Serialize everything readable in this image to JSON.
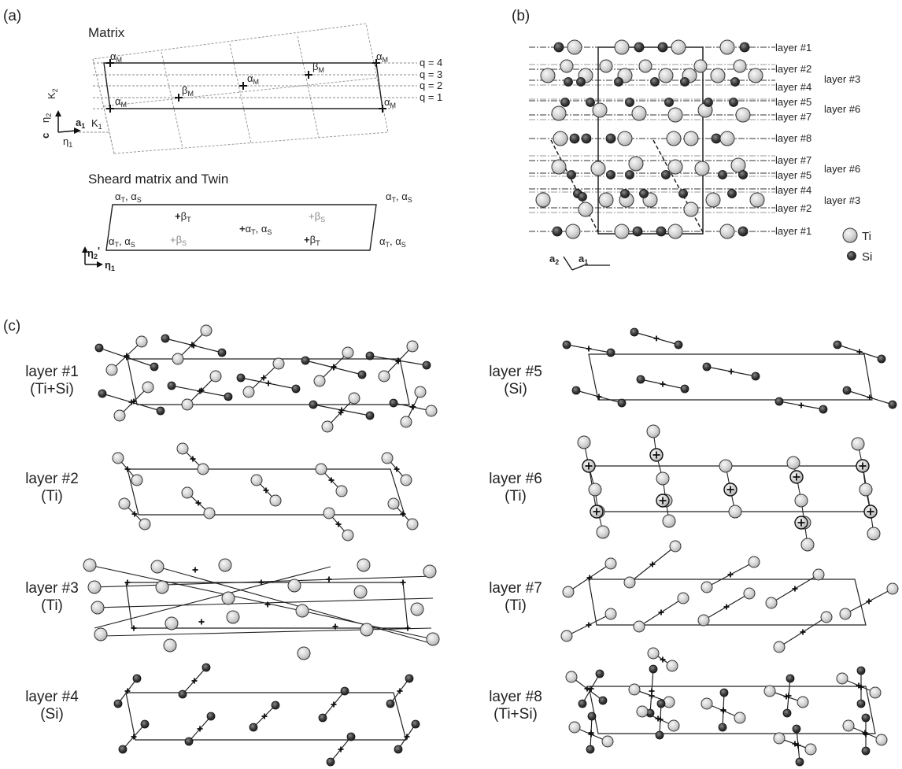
{
  "panels": {
    "a": {
      "label": "(a)",
      "matrix": {
        "title": "Matrix",
        "alpha": "α",
        "beta": "β",
        "sub_m": "M",
        "q_labels": [
          "q = 4",
          "q = 3",
          "q = 2",
          "q = 1"
        ],
        "axes": {
          "k2": "K",
          "k2_sub": "2",
          "eta2": "η",
          "eta2_sub": "2",
          "c": "c",
          "a1": "a",
          "a1_sub": "1",
          "k1": "K",
          "k1_sub": "1",
          "eta1": "η",
          "eta1_sub": "1"
        }
      },
      "twin": {
        "title": "Sheard matrix and Twin",
        "alpha": "α",
        "beta": "β",
        "sub_t": "T",
        "sub_s": "S",
        "comma": ", ",
        "plus": "+",
        "axes": {
          "eta2p": "η",
          "eta2p_sub": "2",
          "prime": "'",
          "eta1": "η",
          "eta1_sub": "1"
        }
      }
    },
    "b": {
      "label": "(b)",
      "layer_labels": [
        "layer #1",
        "layer #2",
        "layer #4",
        "layer #5",
        "layer #7",
        "layer #8",
        "layer #7",
        "layer #5",
        "layer #4",
        "layer #2",
        "layer #1"
      ],
      "group_labels": [
        "layer #3",
        "layer #6",
        "layer #6",
        "layer #3"
      ],
      "legend": {
        "ti": "Ti",
        "si": "Si",
        "ti_color": "#d4d4d4",
        "si_color": "#3c3c3c"
      },
      "axes": {
        "a2": "a",
        "a2_sub": "2",
        "a1": "a",
        "a1_sub": "1"
      }
    },
    "c": {
      "label": "(c)",
      "layers": [
        {
          "name": "layer #1",
          "comp": "(Ti+Si)"
        },
        {
          "name": "layer #2",
          "comp": "(Ti)"
        },
        {
          "name": "layer #3",
          "comp": "(Ti)"
        },
        {
          "name": "layer #4",
          "comp": "(Si)"
        },
        {
          "name": "layer #5",
          "comp": "(Si)"
        },
        {
          "name": "layer #6",
          "comp": "(Ti)"
        },
        {
          "name": "layer #7",
          "comp": "(Ti)"
        },
        {
          "name": "layer #8",
          "comp": "(Ti+Si)"
        }
      ]
    }
  },
  "colors": {
    "ti_fill": "#d4d4d4",
    "si_fill": "#3c3c3c",
    "line": "#222222",
    "grid": "#9a9a9a"
  }
}
